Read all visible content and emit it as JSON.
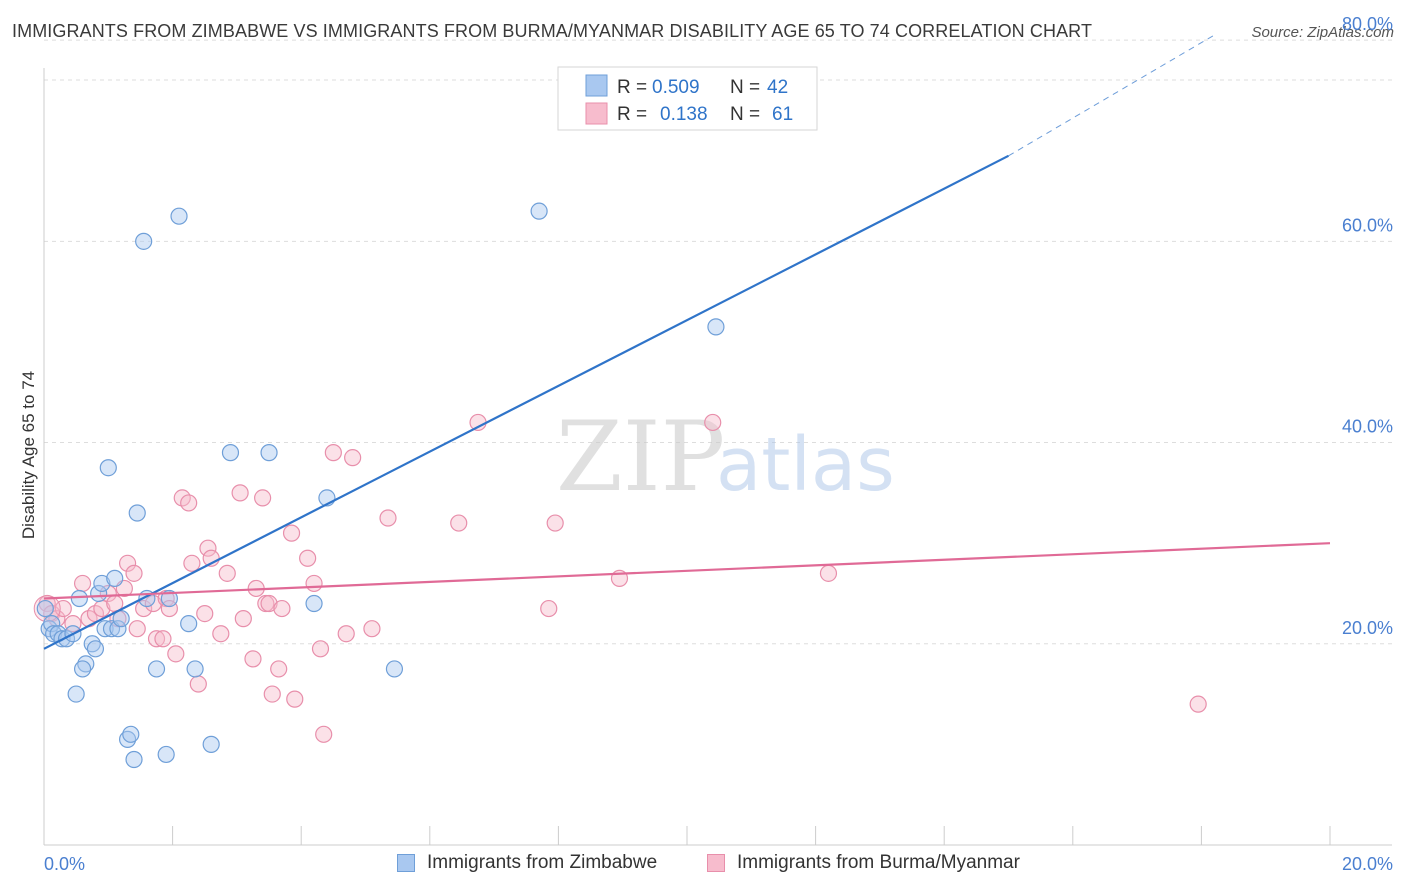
{
  "title": "IMMIGRANTS FROM ZIMBABWE VS IMMIGRANTS FROM BURMA/MYANMAR DISABILITY AGE 65 TO 74 CORRELATION CHART",
  "source": "Source: ZipAtlas.com",
  "watermark": {
    "zip": "ZIP",
    "atlas": "atlas"
  },
  "colors": {
    "zimbabwe_fill": "#a9c8f0",
    "zimbabwe_stroke": "#6f9fd8",
    "zimbabwe_line": "#2f74c9",
    "burma_fill": "#f7bccd",
    "burma_stroke": "#e88fab",
    "burma_line": "#e06a96",
    "axis_text": "#4a7fd0",
    "grid": "#dddddd"
  },
  "chart_data": {
    "type": "scatter",
    "title": "IMMIGRANTS FROM ZIMBABWE VS IMMIGRANTS FROM BURMA/MYANMAR DISABILITY AGE 65 TO 74 CORRELATION CHART",
    "xlabel": "",
    "ylabel": "Disability Age 65 to 74",
    "xlim": [
      0,
      20
    ],
    "ylim": [
      0,
      82
    ],
    "x_tick_labels": [
      {
        "value": 0,
        "label": "0.0%"
      },
      {
        "value": 20,
        "label": "20.0%"
      }
    ],
    "y_tick_labels": [
      {
        "value": 20,
        "label": "20.0%"
      },
      {
        "value": 40,
        "label": "40.0%"
      },
      {
        "value": 60,
        "label": "60.0%"
      },
      {
        "value": 80,
        "label": "80.0%"
      }
    ],
    "x_minor_ticks": [
      0,
      2,
      4,
      6,
      8,
      10,
      12,
      14,
      16,
      18,
      20
    ],
    "legend": [
      {
        "series": "Immigrants from Zimbabwe",
        "r_label": "R =",
        "r_value": "0.509",
        "n_label": "N =",
        "n_value": "42"
      },
      {
        "series": "Immigrants from Burma/Myanmar",
        "r_label": "R =",
        "r_value": "0.138",
        "n_label": "N =",
        "n_value": "61"
      }
    ],
    "series": [
      {
        "name": "Immigrants from Zimbabwe",
        "trend": {
          "x0": 0,
          "y0": 19.5,
          "x1": 15,
          "y1": 68.5,
          "dash_x1": 18.2,
          "dash_y1": 80.5
        },
        "points": [
          [
            0.02,
            23.5
          ],
          [
            0.08,
            21.5
          ],
          [
            0.12,
            22
          ],
          [
            0.15,
            21
          ],
          [
            0.22,
            21
          ],
          [
            0.28,
            20.5
          ],
          [
            0.35,
            20.5
          ],
          [
            0.45,
            21
          ],
          [
            0.55,
            24.5
          ],
          [
            0.65,
            18
          ],
          [
            0.75,
            20
          ],
          [
            0.8,
            19.5
          ],
          [
            0.6,
            17.5
          ],
          [
            0.5,
            15
          ],
          [
            0.85,
            25
          ],
          [
            0.9,
            26
          ],
          [
            0.95,
            21.5
          ],
          [
            1.05,
            21.5
          ],
          [
            1.1,
            26.5
          ],
          [
            1.15,
            21.5
          ],
          [
            1.2,
            22.5
          ],
          [
            1.0,
            37.5
          ],
          [
            1.45,
            33
          ],
          [
            1.6,
            24.5
          ],
          [
            1.75,
            17.5
          ],
          [
            1.3,
            10.5
          ],
          [
            1.35,
            11
          ],
          [
            1.4,
            8.5
          ],
          [
            1.9,
            9
          ],
          [
            1.55,
            60
          ],
          [
            2.1,
            62.5
          ],
          [
            2.25,
            22
          ],
          [
            2.35,
            17.5
          ],
          [
            2.6,
            10
          ],
          [
            2.9,
            39
          ],
          [
            3.5,
            39
          ],
          [
            4.2,
            24
          ],
          [
            4.4,
            34.5
          ],
          [
            5.45,
            17.5
          ],
          [
            7.7,
            63
          ],
          [
            10.45,
            51.5
          ],
          [
            1.95,
            24.5
          ]
        ]
      },
      {
        "name": "Immigrants from Burma/Myanmar",
        "trend": {
          "x0": 0,
          "y0": 24.5,
          "x1": 20,
          "y1": 30
        },
        "points": [
          [
            0.05,
            24
          ],
          [
            0.12,
            23
          ],
          [
            0.2,
            22.5
          ],
          [
            0.3,
            23.5
          ],
          [
            0.45,
            22
          ],
          [
            0.6,
            26
          ],
          [
            0.7,
            22.5
          ],
          [
            0.8,
            23
          ],
          [
            0.9,
            23.5
          ],
          [
            1.0,
            25
          ],
          [
            1.1,
            24
          ],
          [
            1.15,
            22.5
          ],
          [
            1.25,
            25.5
          ],
          [
            1.3,
            28
          ],
          [
            1.4,
            27
          ],
          [
            1.45,
            21.5
          ],
          [
            1.55,
            23.5
          ],
          [
            1.7,
            24
          ],
          [
            1.75,
            20.5
          ],
          [
            1.85,
            20.5
          ],
          [
            1.9,
            24.5
          ],
          [
            1.95,
            23.5
          ],
          [
            2.05,
            19
          ],
          [
            2.15,
            34.5
          ],
          [
            2.25,
            34
          ],
          [
            2.3,
            28
          ],
          [
            2.4,
            16
          ],
          [
            2.5,
            23
          ],
          [
            2.55,
            29.5
          ],
          [
            2.6,
            28.5
          ],
          [
            2.75,
            21
          ],
          [
            2.85,
            27
          ],
          [
            3.05,
            35
          ],
          [
            3.1,
            22.5
          ],
          [
            3.25,
            18.5
          ],
          [
            3.3,
            25.5
          ],
          [
            3.4,
            34.5
          ],
          [
            3.45,
            24
          ],
          [
            3.5,
            24
          ],
          [
            3.55,
            15
          ],
          [
            3.65,
            17.5
          ],
          [
            3.7,
            23.5
          ],
          [
            3.85,
            31
          ],
          [
            3.9,
            14.5
          ],
          [
            4.1,
            28.5
          ],
          [
            4.2,
            26
          ],
          [
            4.3,
            19.5
          ],
          [
            4.35,
            11
          ],
          [
            4.5,
            39
          ],
          [
            4.7,
            21
          ],
          [
            4.8,
            38.5
          ],
          [
            5.1,
            21.5
          ],
          [
            5.35,
            32.5
          ],
          [
            6.45,
            32
          ],
          [
            6.75,
            42
          ],
          [
            7.85,
            23.5
          ],
          [
            7.95,
            32
          ],
          [
            8.95,
            26.5
          ],
          [
            10.4,
            42
          ],
          [
            12.2,
            27
          ],
          [
            17.95,
            14
          ]
        ]
      }
    ]
  }
}
